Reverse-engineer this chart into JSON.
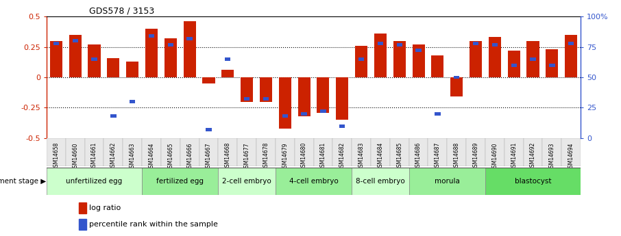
{
  "title": "GDS578 / 3153",
  "samples": [
    "GSM14658",
    "GSM14660",
    "GSM14661",
    "GSM14662",
    "GSM14663",
    "GSM14664",
    "GSM14665",
    "GSM14666",
    "GSM14667",
    "GSM14668",
    "GSM14677",
    "GSM14678",
    "GSM14679",
    "GSM14680",
    "GSM14681",
    "GSM14682",
    "GSM14683",
    "GSM14684",
    "GSM14685",
    "GSM14686",
    "GSM14687",
    "GSM14688",
    "GSM14689",
    "GSM14690",
    "GSM14691",
    "GSM14692",
    "GSM14693",
    "GSM14694"
  ],
  "log_ratio": [
    0.3,
    0.35,
    0.27,
    0.16,
    0.13,
    0.4,
    0.32,
    0.46,
    -0.05,
    0.06,
    -0.2,
    -0.2,
    -0.42,
    -0.32,
    -0.29,
    -0.35,
    0.26,
    0.36,
    0.3,
    0.27,
    0.18,
    -0.16,
    0.3,
    0.33,
    0.22,
    0.3,
    0.23,
    0.35
  ],
  "percentile": [
    78,
    80,
    65,
    18,
    30,
    84,
    77,
    82,
    7,
    65,
    32,
    32,
    18,
    20,
    22,
    10,
    65,
    78,
    77,
    72,
    20,
    50,
    78,
    77,
    60,
    65,
    60,
    78
  ],
  "stages": [
    {
      "label": "unfertilized egg",
      "start": 0,
      "end": 5,
      "color": "#ccffcc"
    },
    {
      "label": "fertilized egg",
      "start": 5,
      "end": 9,
      "color": "#99ee99"
    },
    {
      "label": "2-cell embryo",
      "start": 9,
      "end": 12,
      "color": "#ccffcc"
    },
    {
      "label": "4-cell embryo",
      "start": 12,
      "end": 16,
      "color": "#99ee99"
    },
    {
      "label": "8-cell embryo",
      "start": 16,
      "end": 19,
      "color": "#ccffcc"
    },
    {
      "label": "morula",
      "start": 19,
      "end": 23,
      "color": "#99ee99"
    },
    {
      "label": "blastocyst",
      "start": 23,
      "end": 28,
      "color": "#66dd66"
    }
  ],
  "bar_color": "#cc2200",
  "blue_color": "#3355cc",
  "ylim": [
    -0.5,
    0.5
  ],
  "left_yticks": [
    -0.5,
    -0.25,
    0.0,
    0.25,
    0.5
  ],
  "left_yticklabels": [
    "-0.5",
    "-0.25",
    "0",
    "0.25",
    "0.5"
  ],
  "right_yticks": [
    0.5,
    0.25,
    0.0,
    -0.25,
    -0.5
  ],
  "right_yticklabels": [
    "100%",
    "75",
    "50",
    "25",
    "0"
  ],
  "hline_y": [
    0.25,
    0.0,
    -0.25
  ],
  "hline_color": "black",
  "hline_style": ":"
}
